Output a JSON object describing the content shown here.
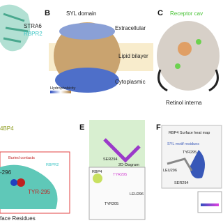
{
  "panel_a": {
    "proteins": [
      "STRA6",
      "RBPR2"
    ],
    "partner": "4BP4",
    "contacts": "Buried contacts",
    "receptor": "RBPR2",
    "residue_1": "-296",
    "residue_2": "TYR-295",
    "footer": "face Residues"
  },
  "panel_b": {
    "label": "B",
    "domain": "SYL domain",
    "layers": [
      "Extracellular",
      "Lipid bilayer",
      "Cytoplasmic"
    ],
    "legend": "Hydrophobicity"
  },
  "panel_c": {
    "label": "C",
    "title": "Receptor cav",
    "caption": "Retinol interna"
  },
  "panel_e": {
    "label": "E",
    "title": "2D-Diagram",
    "residues": [
      "SER294",
      "RBP4",
      "TYR295",
      "LEU296",
      "TYR205"
    ]
  },
  "panel_f": {
    "label": "F",
    "title": "RBP4 Surface heat map",
    "motif": "SYL motif residues",
    "residues": [
      "TYR295",
      "LEU296",
      "SER294"
    ]
  }
}
